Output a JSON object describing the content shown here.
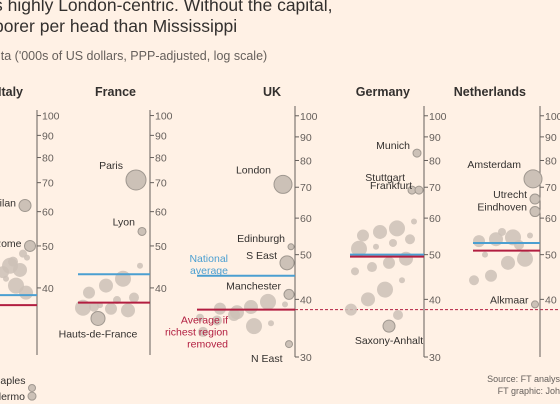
{
  "header": {
    "title": "s highly London-centric. Without the capital,",
    "title_line2": "porer per head than Mississippi",
    "subtitle": "ita ('000s of US dollars, PPP-adjusted, log scale)"
  },
  "annotations": {
    "national_average": [
      "National",
      "average"
    ],
    "average_without_richest": [
      "Average if",
      "richest region",
      "removed"
    ]
  },
  "source": [
    "Source: FT analys",
    "FT graphic: Joh"
  ],
  "colors": {
    "background": "#fff1e5",
    "bubble": "#ccc1b7",
    "bubble_stroke": "#a09890",
    "national_average": "#4b9fd1",
    "without_richest": "#b21e40",
    "reference_line": "#b21e40"
  },
  "chart_data": {
    "type": "scatter",
    "scale": "log",
    "ylabel": "'000s of US dollars, PPP-adjusted",
    "reference_line": 38,
    "panels": [
      {
        "country": "Italy",
        "ylim": [
          28,
          103
        ],
        "ticks": [
          40,
          50,
          60,
          70,
          80,
          90,
          100
        ],
        "national_average": 38.5,
        "average_without_richest": 36.5,
        "labelled_regions": [
          {
            "name": "Milan",
            "value": 62
          },
          {
            "name": "Rome",
            "value": 50
          },
          {
            "name": "Naples",
            "value": 23.5
          },
          {
            "name": "Palermo",
            "value": 22.5
          }
        ],
        "other_regions": [
          47,
          45,
          44,
          43.5,
          46,
          48,
          42,
          40.5,
          39
        ]
      },
      {
        "country": "France",
        "ylim": [
          28,
          103
        ],
        "ticks": [
          40,
          50,
          60,
          70,
          80,
          90,
          100
        ],
        "national_average": 43,
        "average_without_richest": 37,
        "labelled_regions": [
          {
            "name": "Paris",
            "value": 71
          },
          {
            "name": "Lyon",
            "value": 54
          },
          {
            "name": "Hauts-de-France",
            "value": 34
          }
        ],
        "other_regions": [
          45,
          42,
          40.5,
          39,
          38,
          37.5,
          36.5,
          36,
          35.5,
          35.8,
          36.2
        ]
      },
      {
        "country": "UK",
        "ylim": [
          30,
          105
        ],
        "ticks": [
          30,
          40,
          50,
          60,
          70,
          80,
          90,
          100
        ],
        "national_average": 45,
        "average_without_richest": 38,
        "labelled_regions": [
          {
            "name": "London",
            "value": 71
          },
          {
            "name": "Edinburgh",
            "value": 52
          },
          {
            "name": "S East",
            "value": 48
          },
          {
            "name": "Manchester",
            "value": 41
          },
          {
            "name": "N East",
            "value": 32
          }
        ],
        "other_regions": [
          39,
          39.5,
          38.5,
          37,
          36,
          36.5,
          35.5,
          35,
          37.5,
          38.2,
          34
        ]
      },
      {
        "country": "Germany",
        "ylim": [
          30,
          105
        ],
        "ticks": [
          30,
          40,
          50,
          60,
          70,
          80,
          90,
          100
        ],
        "national_average": 50,
        "average_without_richest": 49.5,
        "labelled_regions": [
          {
            "name": "Munich",
            "value": 83
          },
          {
            "name": "Stuttgart",
            "value": 69
          },
          {
            "name": "Frankfurt",
            "value": 69
          },
          {
            "name": "Saxony-Anhalt",
            "value": 35
          }
        ],
        "other_regions": [
          59,
          57,
          56,
          55,
          54,
          53,
          52,
          51.5,
          49,
          48,
          47,
          46,
          44,
          42,
          40,
          38,
          37
        ]
      },
      {
        "country": "Netherlands",
        "ylim": [
          30,
          105
        ],
        "ticks": [
          40,
          50,
          60,
          70,
          80,
          90,
          100
        ],
        "national_average": 53,
        "average_without_richest": 51,
        "labelled_regions": [
          {
            "name": "Amsterdam",
            "value": 73
          },
          {
            "name": "Utrecht",
            "value": 66
          },
          {
            "name": "Eindhoven",
            "value": 62
          },
          {
            "name": "Alkmaar",
            "value": 39
          }
        ],
        "other_regions": [
          55,
          54.5,
          54,
          53.5,
          52.5,
          56,
          50,
          49,
          48,
          45,
          44
        ]
      }
    ]
  }
}
